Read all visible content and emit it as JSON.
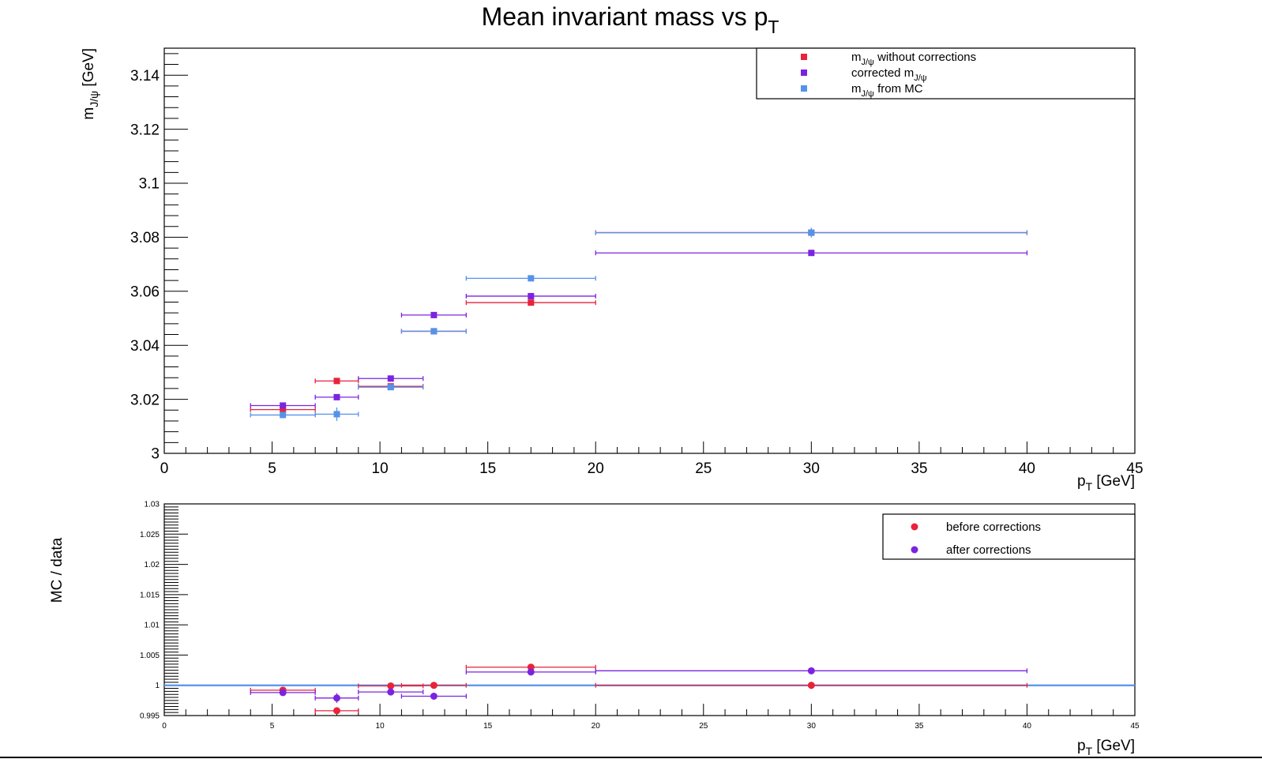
{
  "title": {
    "main": "Mean invariant mass vs p",
    "sub": "T"
  },
  "chart_data": [
    {
      "type": "scatter",
      "panel": "top",
      "xlabel": {
        "main": "p",
        "sub": "T",
        "rest": " [GeV]"
      },
      "ylabel": {
        "main": "m",
        "sub": "J/ψ",
        "rest": " [GeV]"
      },
      "xlim": [
        0,
        45
      ],
      "ylim": [
        3.0,
        3.15
      ],
      "xticks": [
        0,
        5,
        10,
        15,
        20,
        25,
        30,
        35,
        40,
        45
      ],
      "yticks": [
        3,
        3.02,
        3.04,
        3.06,
        3.08,
        3.1,
        3.12,
        3.14
      ],
      "ytick_labels": [
        "3",
        "3.02",
        "3.04",
        "3.06",
        "3.08",
        "3.1",
        "3.12",
        "3.14"
      ],
      "legend_position": "top-right",
      "series": [
        {
          "name": {
            "main": "m",
            "sub": "J/ψ",
            "rest": " without corrections",
            "prefix": ""
          },
          "color": "#e8233a",
          "marker": "square",
          "points": [
            {
              "x": 5.5,
              "y": 3.0162,
              "xlo": 4,
              "xhi": 7,
              "ey": 0.0008
            },
            {
              "x": 8,
              "y": 3.0268,
              "xlo": 7,
              "xhi": 9,
              "ey": 0.0008
            },
            {
              "x": 10.5,
              "y": 3.0248,
              "xlo": 9,
              "xhi": 12,
              "ey": 0.0008
            },
            {
              "x": 12.5,
              "y": 3.0452,
              "xlo": 11,
              "xhi": 14,
              "ey": 0.0008
            },
            {
              "x": 17,
              "y": 3.0558,
              "xlo": 14,
              "xhi": 20,
              "ey": 0.0008
            },
            {
              "x": 30,
              "y": 3.0817,
              "xlo": 20,
              "xhi": 40,
              "ey": 0.0008
            }
          ]
        },
        {
          "name": {
            "main": "m",
            "sub": "J/ψ",
            "rest": "",
            "prefix": "corrected "
          },
          "color": "#7b24e0",
          "marker": "square",
          "points": [
            {
              "x": 5.5,
              "y": 3.0177,
              "xlo": 4,
              "xhi": 7,
              "ey": 0.0008
            },
            {
              "x": 8,
              "y": 3.0208,
              "xlo": 7,
              "xhi": 9,
              "ey": 0.0008
            },
            {
              "x": 10.5,
              "y": 3.0277,
              "xlo": 9,
              "xhi": 12,
              "ey": 0.0008
            },
            {
              "x": 12.5,
              "y": 3.0512,
              "xlo": 11,
              "xhi": 14,
              "ey": 0.0008
            },
            {
              "x": 17,
              "y": 3.0582,
              "xlo": 14,
              "xhi": 20,
              "ey": 0.0008
            },
            {
              "x": 30,
              "y": 3.0742,
              "xlo": 20,
              "xhi": 40,
              "ey": 0.0008
            }
          ]
        },
        {
          "name": {
            "main": "m",
            "sub": "J/ψ",
            "rest": " from MC",
            "prefix": ""
          },
          "color": "#5592ea",
          "marker": "square",
          "points": [
            {
              "x": 5.5,
              "y": 3.0142,
              "xlo": 4,
              "xhi": 7,
              "ey": 0.0008
            },
            {
              "x": 8,
              "y": 3.0145,
              "xlo": 7,
              "xhi": 9,
              "ey": 0.0025
            },
            {
              "x": 10.5,
              "y": 3.0245,
              "xlo": 9,
              "xhi": 12,
              "ey": 0.0008
            },
            {
              "x": 12.5,
              "y": 3.0452,
              "xlo": 11,
              "xhi": 14,
              "ey": 0.0008
            },
            {
              "x": 17,
              "y": 3.0648,
              "xlo": 14,
              "xhi": 20,
              "ey": 0.0008
            },
            {
              "x": 30,
              "y": 3.0817,
              "xlo": 20,
              "xhi": 40,
              "ey": 0.0018
            }
          ]
        }
      ]
    },
    {
      "type": "scatter",
      "panel": "bottom",
      "xlabel": {
        "main": "p",
        "sub": "T",
        "rest": " [GeV]"
      },
      "ylabel": {
        "main": "MC / data",
        "sub": "",
        "rest": ""
      },
      "xlim": [
        0,
        45
      ],
      "ylim": [
        0.995,
        1.03
      ],
      "xticks": [
        0,
        5,
        10,
        15,
        20,
        25,
        30,
        35,
        40,
        45
      ],
      "yticks": [
        0.995,
        1,
        1.005,
        1.01,
        1.015,
        1.02,
        1.025,
        1.03
      ],
      "ytick_labels": [
        "0.995",
        "1",
        "1.005",
        "1.01",
        "1.015",
        "1.02",
        "1.025",
        "1.03"
      ],
      "reference_line": {
        "y": 1,
        "color": "#5592ea"
      },
      "legend_position": "top-right",
      "series": [
        {
          "name": {
            "main": "before corrections",
            "sub": "",
            "rest": "",
            "prefix": ""
          },
          "color": "#e8233a",
          "marker": "circle",
          "points": [
            {
              "x": 5.5,
              "y": 0.9992,
              "xlo": 4,
              "xhi": 7,
              "ey": 0.0002
            },
            {
              "x": 8,
              "y": 0.9958,
              "xlo": 7,
              "xhi": 9,
              "ey": 0.0003
            },
            {
              "x": 10.5,
              "y": 0.9999,
              "xlo": 9,
              "xhi": 12,
              "ey": 0.0002
            },
            {
              "x": 12.5,
              "y": 1.0,
              "xlo": 11,
              "xhi": 14,
              "ey": 0.0002
            },
            {
              "x": 17,
              "y": 1.003,
              "xlo": 14,
              "xhi": 20,
              "ey": 0.0002
            },
            {
              "x": 30,
              "y": 1.0,
              "xlo": 20,
              "xhi": 40,
              "ey": 0.0006
            }
          ]
        },
        {
          "name": {
            "main": "after corrections",
            "sub": "",
            "rest": "",
            "prefix": ""
          },
          "color": "#7b24e0",
          "marker": "circle",
          "points": [
            {
              "x": 5.5,
              "y": 0.9988,
              "xlo": 4,
              "xhi": 7,
              "ey": 0.0002
            },
            {
              "x": 8,
              "y": 0.9979,
              "xlo": 7,
              "xhi": 9,
              "ey": 0.0008
            },
            {
              "x": 10.5,
              "y": 0.9989,
              "xlo": 9,
              "xhi": 12,
              "ey": 0.0002
            },
            {
              "x": 12.5,
              "y": 0.9982,
              "xlo": 11,
              "xhi": 14,
              "ey": 0.0002
            },
            {
              "x": 17,
              "y": 1.0022,
              "xlo": 14,
              "xhi": 20,
              "ey": 0.0002
            },
            {
              "x": 30,
              "y": 1.0024,
              "xlo": 20,
              "xhi": 40,
              "ey": 0.0004
            }
          ]
        }
      ]
    }
  ]
}
